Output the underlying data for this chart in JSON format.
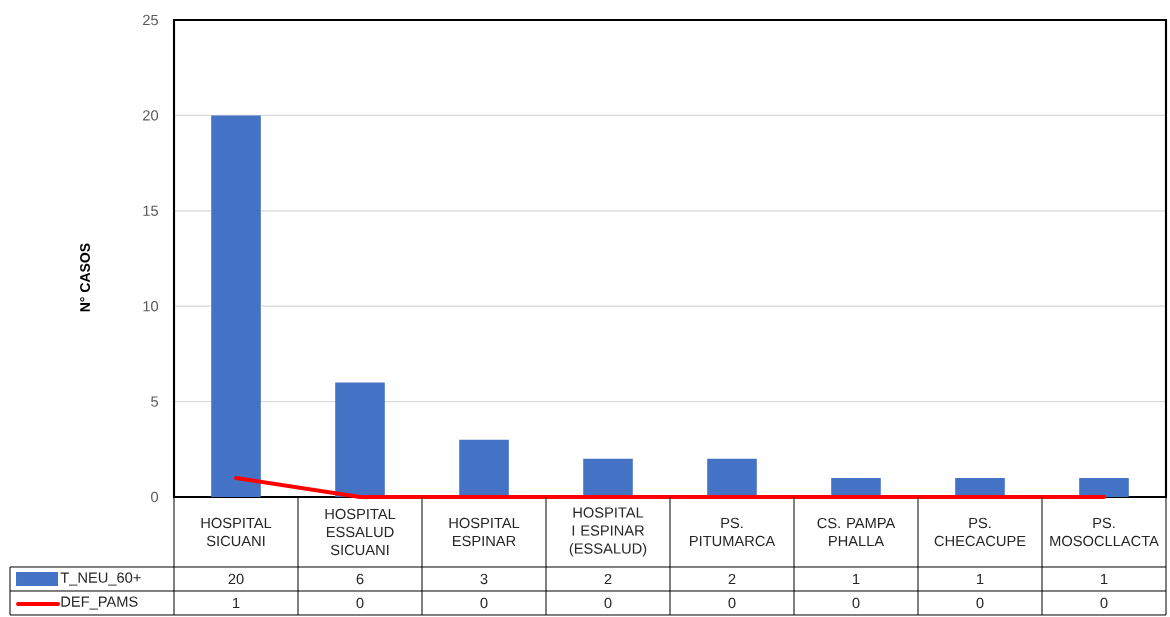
{
  "chart_data": {
    "type": "bar",
    "ylabel": "N° CASOS",
    "categories": [
      "HOSPITAL SICUANI",
      "HOSPITAL ESSALUD SICUANI",
      "HOSPITAL ESPINAR",
      "HOSPITAL I ESPINAR (ESSALUD)",
      "PS. PITUMARCA",
      "CS. PAMPA PHALLA",
      "PS. CHECACUPE",
      "PS. MOSOCLLACTA"
    ],
    "series": [
      {
        "name": "T_NEU_60+",
        "color": "#4472c4",
        "values": [
          20,
          6,
          3,
          2,
          2,
          1,
          1,
          1
        ]
      },
      {
        "name": "DEF_PAMS",
        "type": "line",
        "color": "#ff0000",
        "values": [
          1,
          0,
          0,
          0,
          0,
          0,
          0,
          0
        ]
      }
    ],
    "ylim": [
      0,
      25
    ],
    "yticks": [
      0,
      5,
      10,
      15,
      20,
      25
    ],
    "grid": "y",
    "legend": "bottom left",
    "data_labels": true
  }
}
